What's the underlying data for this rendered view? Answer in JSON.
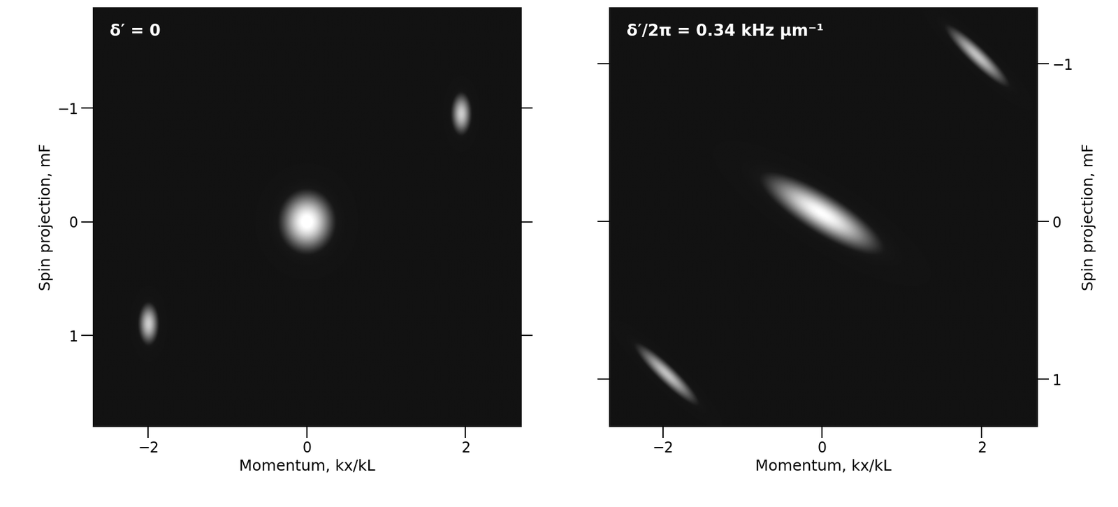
{
  "chart_data": [
    {
      "type": "image",
      "annotation": "δ′ = 0",
      "x_label": "Momentum, kx/kL",
      "y_label": "Spin projection, mF",
      "xlim": [
        -2.7,
        2.7
      ],
      "ylim": [
        1.8,
        -1.89
      ],
      "xticks": [
        {
          "value": -2,
          "label": "−2"
        },
        0,
        2
      ],
      "yticks": [
        {
          "value": -1,
          "label": "−1"
        },
        0,
        1
      ],
      "blobs": [
        {
          "x": 0,
          "y": 0,
          "x_width": 0.38,
          "y_width": 0.3,
          "slope": 0,
          "peak": 1.0
        },
        {
          "x": 1.95,
          "y": -0.95,
          "x_width": 0.14,
          "y_width": 0.2,
          "slope": 0,
          "peak": 0.75
        },
        {
          "x": -2.0,
          "y": 0.9,
          "x_width": 0.14,
          "y_width": 0.2,
          "slope": 0,
          "peak": 0.75
        }
      ]
    },
    {
      "type": "image",
      "annotation": "δ′/2π = 0.34 kHz μm⁻¹",
      "x_label": "Momentum, kx/kL",
      "y_label": "Spin projection, mF",
      "xlim": [
        -2.67,
        2.7
      ],
      "ylim": [
        1.3,
        -1.36
      ],
      "xticks": [
        {
          "value": -2,
          "label": "−2"
        },
        0,
        2
      ],
      "yticks": [
        {
          "value": -1,
          "label": "−1"
        },
        0,
        1
      ],
      "blobs": [
        {
          "x": 0,
          "y": -0.05,
          "x_width": 0.8,
          "y_width": 0.15,
          "slope": 0.28,
          "peak": 0.95
        },
        {
          "x": 1.95,
          "y": -1.05,
          "x_width": 0.42,
          "y_width": 0.08,
          "slope": 0.45,
          "peak": 0.7
        },
        {
          "x": -1.95,
          "y": 0.97,
          "x_width": 0.42,
          "y_width": 0.08,
          "slope": 0.45,
          "peak": 0.7
        }
      ]
    }
  ]
}
